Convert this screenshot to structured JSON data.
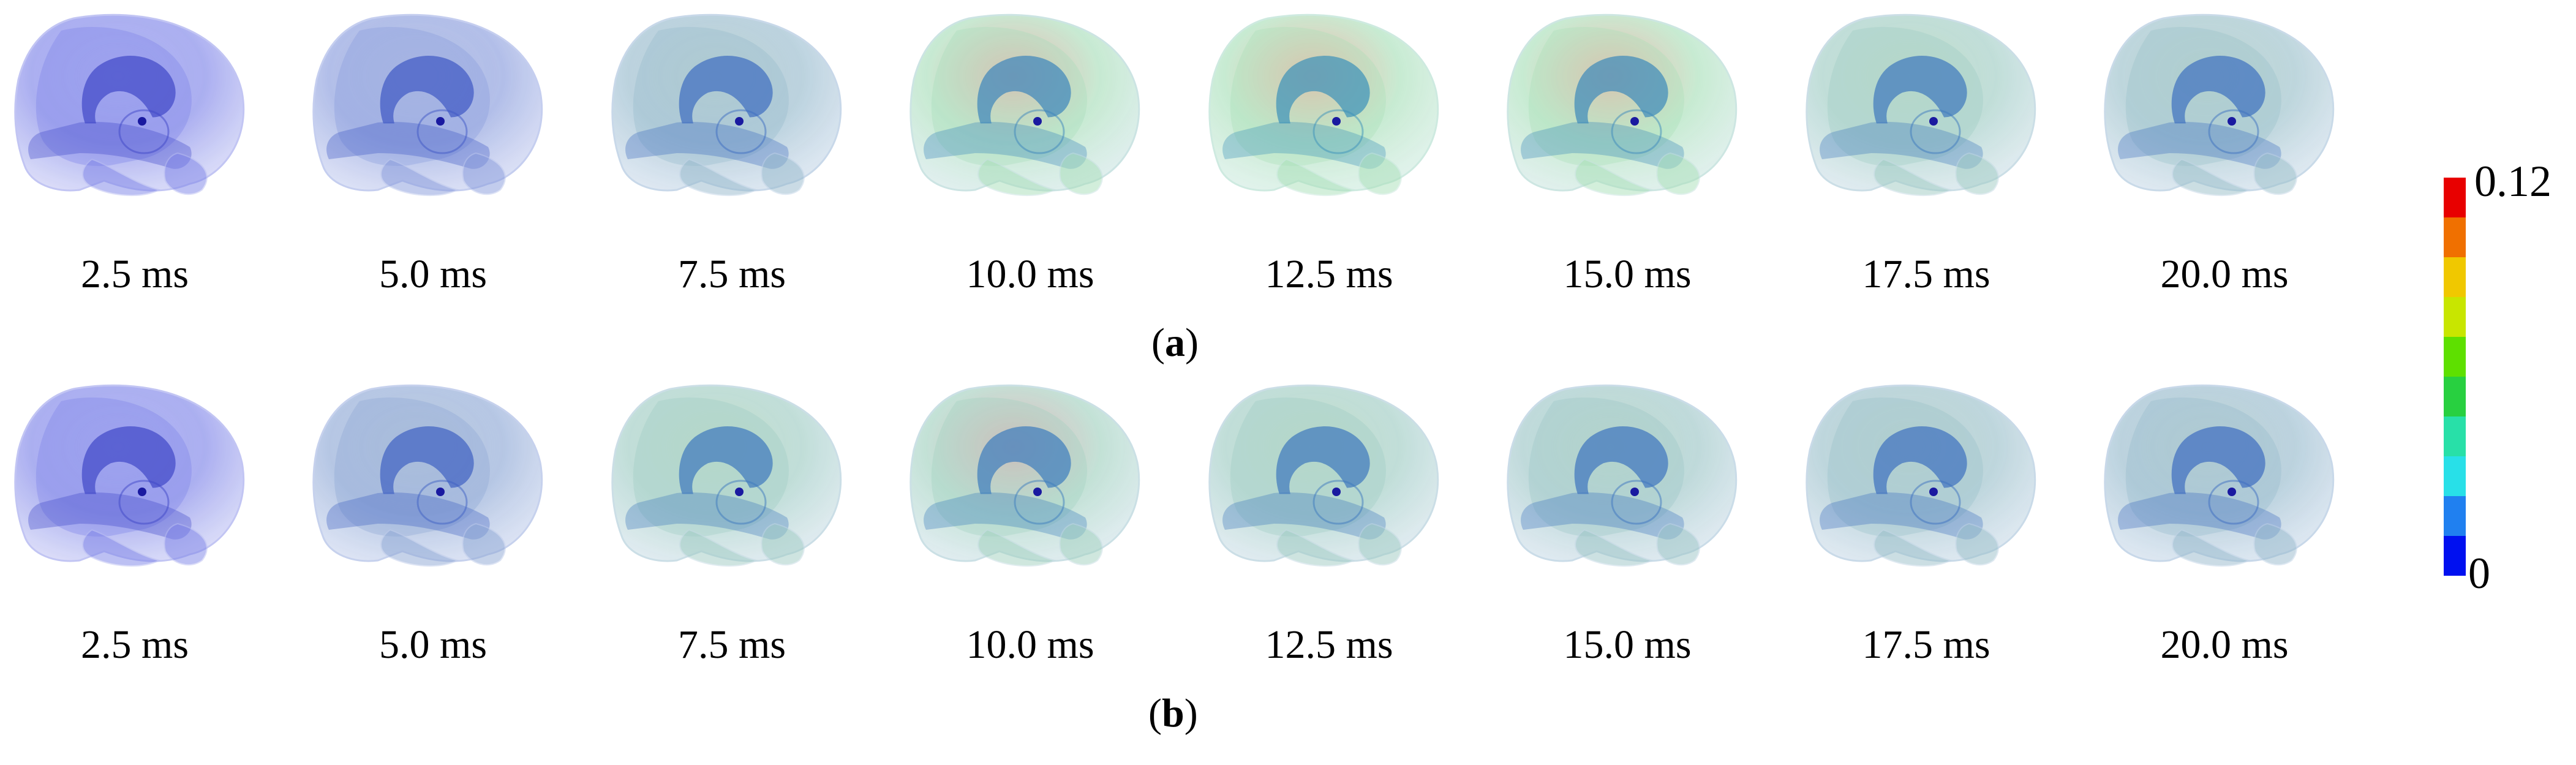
{
  "colors": {
    "bar": [
      "#e80000",
      "#f07000",
      "#f0c800",
      "#c8e600",
      "#5ee000",
      "#28d040",
      "#28e0a8",
      "#28e0e8",
      "#2080f0",
      "#0010f0"
    ]
  },
  "panels": [
    {
      "label": "a",
      "frames": [
        {
          "time": "2.5 ms",
          "mix": 0.0
        },
        {
          "time": "5.0 ms",
          "mix": 0.2
        },
        {
          "time": "7.5 ms",
          "mix": 0.45
        },
        {
          "time": "10.0 ms",
          "mix": 0.75
        },
        {
          "time": "12.5 ms",
          "mix": 0.9
        },
        {
          "time": "15.0 ms",
          "mix": 0.8
        },
        {
          "time": "17.5 ms",
          "mix": 0.6
        },
        {
          "time": "20.0 ms",
          "mix": 0.5
        }
      ]
    },
    {
      "label": "b",
      "frames": [
        {
          "time": "2.5 ms",
          "mix": 0.0
        },
        {
          "time": "5.0 ms",
          "mix": 0.3
        },
        {
          "time": "7.5 ms",
          "mix": 0.6
        },
        {
          "time": "10.0 ms",
          "mix": 0.65
        },
        {
          "time": "12.5 ms",
          "mix": 0.6
        },
        {
          "time": "15.0 ms",
          "mix": 0.55
        },
        {
          "time": "17.5 ms",
          "mix": 0.5
        },
        {
          "time": "20.0 ms",
          "mix": 0.45
        }
      ]
    }
  ],
  "colorbar": {
    "max_label": "0.12",
    "min_label": "0"
  }
}
